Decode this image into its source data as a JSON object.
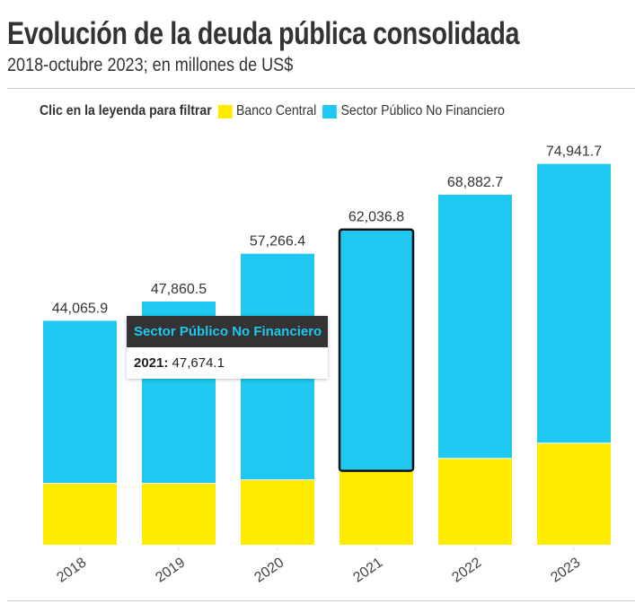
{
  "header": {
    "title": "Evolución de la deuda pública consolidada",
    "subtitle": "2018-octubre 2023; en millones de US$"
  },
  "legend": {
    "label": "Clic en la leyenda para filtrar"
  },
  "tooltip": {
    "series": "Sector Público No Financiero",
    "year": "2021:",
    "value": "47,674.1"
  },
  "chart_data": {
    "type": "bar",
    "stacked": true,
    "categories": [
      "2018",
      "2019",
      "2020",
      "2021",
      "2022",
      "2023"
    ],
    "series": [
      {
        "name": "Banco Central",
        "color": "#ffeb00",
        "values": [
          12000,
          12000,
          12700,
          14362.7,
          16900,
          19900
        ]
      },
      {
        "name": "Sector Público No Financiero",
        "color": "#1ec8f0",
        "values": [
          32065.9,
          35860.5,
          44566.4,
          47674.1,
          51982.7,
          55041.7
        ]
      }
    ],
    "totals": [
      "44,065.9",
      "47,860.5",
      "57,266.4",
      "62,036.8",
      "68,882.7",
      "74,941.7"
    ],
    "total_values": [
      44065.9,
      47860.5,
      57266.4,
      62036.8,
      68882.7,
      74941.7
    ],
    "highlighted": "2021",
    "ylim": [
      0,
      80000
    ],
    "grid": false,
    "legend_position": "top"
  }
}
